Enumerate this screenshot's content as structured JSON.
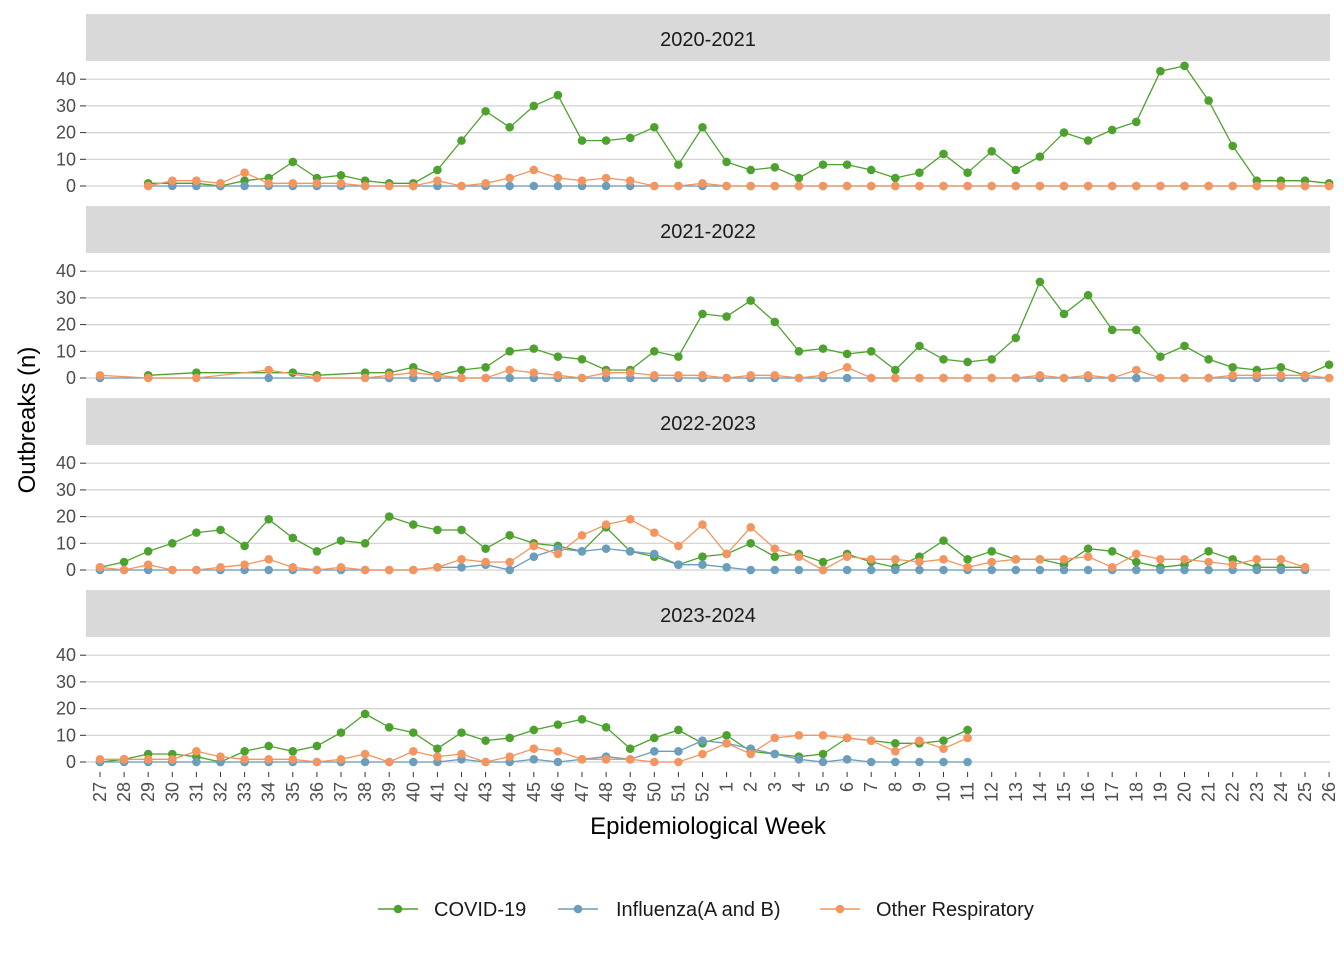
{
  "chart_data": {
    "type": "line",
    "xlabel": "Epidemiological Week",
    "ylabel": "Outbreaks (n)",
    "ylim": [
      0,
      45
    ],
    "yticks": [
      0,
      10,
      20,
      30,
      40
    ],
    "grid": true,
    "legend_position": "bottom",
    "weeks": [
      "27",
      "28",
      "29",
      "30",
      "31",
      "32",
      "33",
      "34",
      "35",
      "36",
      "37",
      "38",
      "39",
      "40",
      "41",
      "42",
      "43",
      "44",
      "45",
      "46",
      "47",
      "48",
      "49",
      "50",
      "51",
      "52",
      "1",
      "2",
      "3",
      "4",
      "5",
      "6",
      "7",
      "8",
      "9",
      "10",
      "11",
      "12",
      "13",
      "14",
      "15",
      "16",
      "17",
      "18",
      "19",
      "20",
      "21",
      "22",
      "23",
      "24",
      "25",
      "26"
    ],
    "series_meta": [
      {
        "key": "covid",
        "name": "COVID-19",
        "color": "#4da22e"
      },
      {
        "key": "flu",
        "name": "Influenza(A and B)",
        "color": "#6b9dbd"
      },
      {
        "key": "other",
        "name": "Other Respiratory",
        "color": "#f4955f"
      }
    ],
    "panels": [
      {
        "title": "2020-2021",
        "series": {
          "covid": [
            null,
            null,
            1,
            1,
            1,
            0,
            2,
            3,
            9,
            3,
            4,
            2,
            1,
            1,
            6,
            17,
            28,
            22,
            30,
            34,
            17,
            17,
            18,
            22,
            8,
            22,
            9,
            6,
            7,
            3,
            8,
            8,
            6,
            3,
            5,
            12,
            5,
            13,
            6,
            11,
            20,
            17,
            21,
            24,
            43,
            45,
            32,
            15,
            2,
            2,
            2,
            1
          ],
          "flu": [
            null,
            null,
            0,
            0,
            0,
            0,
            0,
            0,
            0,
            0,
            0,
            0,
            0,
            0,
            0,
            0,
            0,
            0,
            0,
            0,
            0,
            0,
            0,
            0,
            0,
            0,
            0,
            0,
            0,
            0,
            0,
            0,
            0,
            0,
            0,
            0,
            0,
            0,
            0,
            0,
            0,
            0,
            0,
            0,
            0,
            0,
            0,
            0,
            0,
            0,
            0,
            0
          ],
          "other": [
            null,
            null,
            0,
            2,
            2,
            1,
            5,
            1,
            1,
            1,
            1,
            0,
            0,
            0,
            2,
            0,
            1,
            3,
            6,
            3,
            2,
            3,
            2,
            0,
            0,
            1,
            0,
            0,
            0,
            0,
            0,
            0,
            0,
            0,
            0,
            0,
            0,
            0,
            0,
            0,
            0,
            0,
            0,
            0,
            0,
            0,
            0,
            0,
            0,
            0,
            0,
            0
          ]
        }
      },
      {
        "title": "2021-2022",
        "series": {
          "covid": [
            null,
            null,
            1,
            null,
            2,
            null,
            null,
            null,
            2,
            1,
            null,
            2,
            2,
            4,
            1,
            3,
            4,
            10,
            11,
            8,
            7,
            3,
            3,
            10,
            8,
            24,
            23,
            29,
            21,
            10,
            11,
            9,
            10,
            3,
            12,
            7,
            6,
            7,
            15,
            36,
            24,
            31,
            18,
            18,
            8,
            12,
            7,
            4,
            3,
            4,
            1,
            5
          ],
          "flu": [
            0,
            null,
            null,
            null,
            null,
            null,
            null,
            0,
            null,
            null,
            null,
            null,
            0,
            0,
            0,
            0,
            0,
            0,
            0,
            0,
            0,
            0,
            0,
            0,
            0,
            0,
            0,
            0,
            0,
            0,
            0,
            0,
            0,
            0,
            0,
            0,
            0,
            0,
            0,
            0,
            0,
            0,
            0,
            0,
            0,
            0,
            0,
            0,
            0,
            0,
            0,
            0
          ],
          "other": [
            1,
            null,
            0,
            null,
            0,
            null,
            null,
            3,
            null,
            0,
            null,
            0,
            1,
            2,
            1,
            0,
            0,
            3,
            2,
            1,
            0,
            2,
            2,
            1,
            1,
            1,
            0,
            1,
            1,
            0,
            1,
            4,
            0,
            0,
            0,
            0,
            0,
            0,
            0,
            1,
            0,
            1,
            0,
            3,
            0,
            0,
            0,
            1,
            1,
            1,
            1,
            0
          ]
        }
      },
      {
        "title": "2022-2023",
        "series": {
          "covid": [
            1,
            3,
            7,
            10,
            14,
            15,
            9,
            19,
            12,
            7,
            11,
            10,
            20,
            17,
            15,
            15,
            8,
            13,
            10,
            9,
            7,
            16,
            7,
            5,
            2,
            5,
            6,
            10,
            5,
            6,
            3,
            6,
            3,
            1,
            5,
            11,
            4,
            7,
            4,
            4,
            2,
            8,
            7,
            3,
            1,
            2,
            7,
            4,
            1,
            1,
            1,
            null
          ],
          "flu": [
            0,
            0,
            0,
            0,
            0,
            0,
            0,
            0,
            0,
            0,
            0,
            0,
            0,
            0,
            1,
            1,
            2,
            0,
            5,
            8,
            7,
            8,
            7,
            6,
            2,
            2,
            1,
            0,
            0,
            0,
            0,
            0,
            0,
            0,
            0,
            0,
            0,
            0,
            0,
            0,
            0,
            0,
            0,
            0,
            0,
            0,
            0,
            0,
            0,
            0,
            0,
            null
          ],
          "other": [
            1,
            0,
            2,
            0,
            0,
            1,
            2,
            4,
            1,
            0,
            1,
            0,
            0,
            0,
            1,
            4,
            3,
            3,
            9,
            6,
            13,
            17,
            19,
            14,
            9,
            17,
            6,
            16,
            8,
            5,
            0,
            5,
            4,
            4,
            3,
            4,
            1,
            3,
            4,
            4,
            4,
            5,
            1,
            6,
            4,
            4,
            3,
            2,
            4,
            4,
            1,
            null
          ]
        }
      },
      {
        "title": "2023-2024",
        "series": {
          "covid": [
            0,
            1,
            3,
            3,
            2,
            0,
            4,
            6,
            4,
            6,
            11,
            18,
            13,
            11,
            5,
            11,
            8,
            9,
            12,
            14,
            16,
            13,
            5,
            9,
            12,
            7,
            10,
            4,
            3,
            2,
            3,
            9,
            8,
            7,
            7,
            8,
            12,
            null,
            null,
            null,
            null,
            null,
            null,
            null,
            null,
            null,
            null,
            null,
            null,
            null,
            null,
            null
          ],
          "flu": [
            0,
            0,
            0,
            0,
            0,
            0,
            0,
            0,
            0,
            0,
            0,
            0,
            0,
            0,
            0,
            1,
            0,
            0,
            1,
            0,
            1,
            2,
            1,
            4,
            4,
            8,
            7,
            5,
            3,
            1,
            0,
            1,
            0,
            0,
            0,
            0,
            0,
            null,
            null,
            null,
            null,
            null,
            null,
            null,
            null,
            null,
            null,
            null,
            null,
            null,
            null,
            null
          ],
          "other": [
            1,
            1,
            1,
            1,
            4,
            2,
            1,
            1,
            1,
            0,
            1,
            3,
            0,
            4,
            2,
            3,
            0,
            2,
            5,
            4,
            1,
            1,
            1,
            0,
            0,
            3,
            7,
            3,
            9,
            10,
            10,
            9,
            8,
            4,
            8,
            5,
            9,
            null,
            null,
            null,
            null,
            null,
            null,
            null,
            null,
            null,
            null,
            null,
            null,
            null,
            null,
            null
          ]
        }
      }
    ]
  }
}
